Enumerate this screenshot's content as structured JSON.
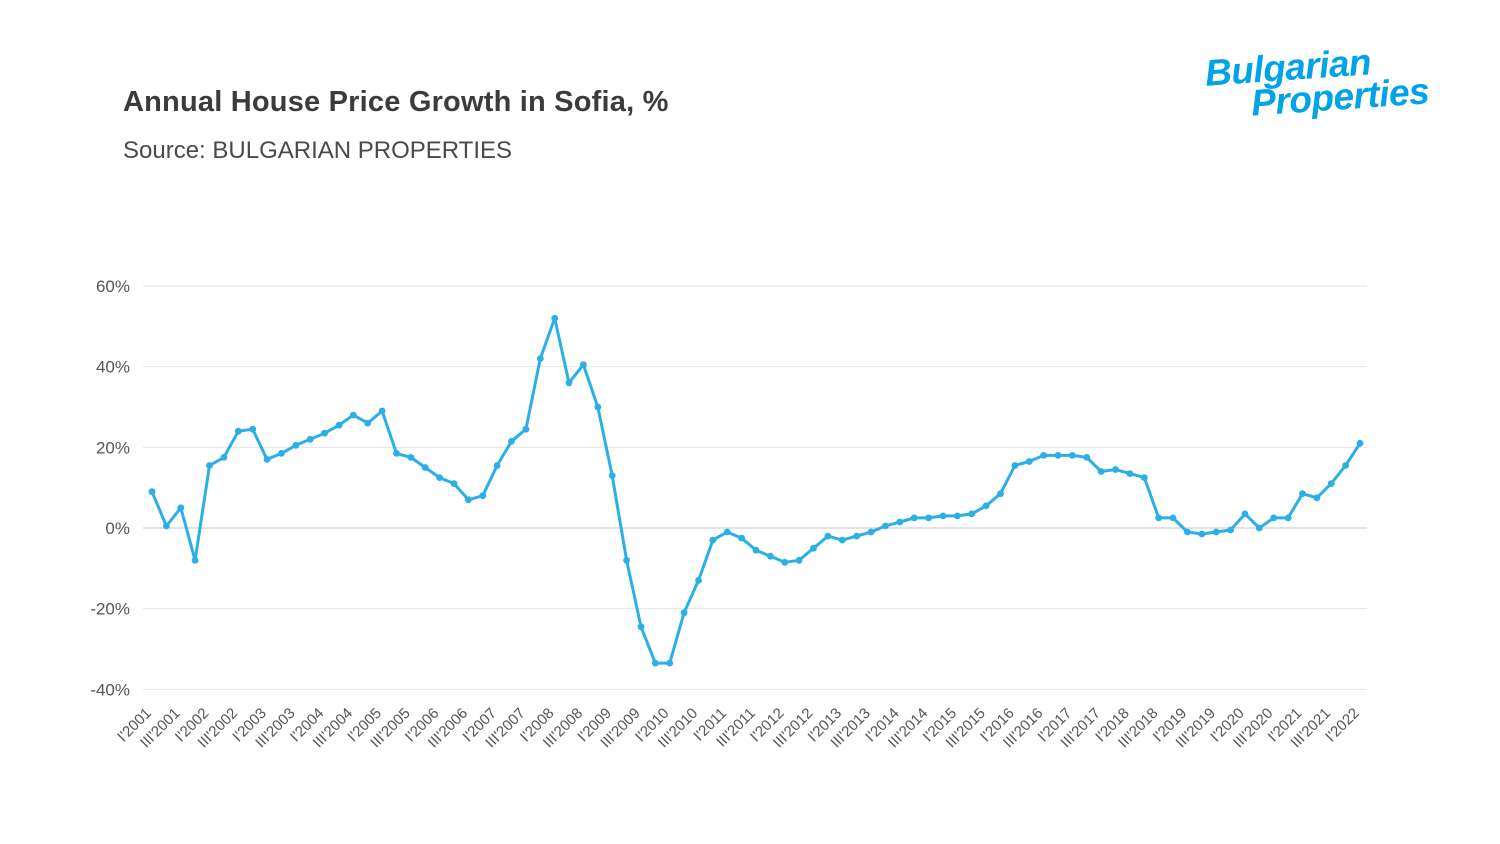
{
  "header": {
    "title": "Annual House Price Growth in Sofia, %",
    "source": "Source: BULGARIAN PROPERTIES"
  },
  "logo": {
    "line1": "Bulgarian",
    "line2": "Properties",
    "color": "#00a2e8"
  },
  "colors": {
    "line": "#2bafe6",
    "gridline": "#e4e4e4",
    "zero_gridline": "#c7c7c7",
    "axis_text": "#555555",
    "title_text": "#3b3b3b"
  },
  "chart_data": {
    "type": "line",
    "title": "Annual House Price Growth in Sofia, %",
    "subtitle": "Source: BULGARIAN PROPERTIES",
    "series_name": "Annual house price growth, %",
    "xlabel": "",
    "ylabel": "",
    "ylim": [
      -40,
      60
    ],
    "yticks": [
      60,
      40,
      20,
      0,
      -20,
      -40
    ],
    "ytick_suffix": "%",
    "grid": "horizontal",
    "legend": "none",
    "x_label_every": 2,
    "x_label_rotation": -45,
    "line_color": "#2bafe6",
    "marker": "circle",
    "x": [
      "I'2001",
      "II'2001",
      "III'2001",
      "IV'2001",
      "I'2002",
      "II'2002",
      "III'2002",
      "IV'2002",
      "I'2003",
      "II'2003",
      "III'2003",
      "IV'2003",
      "I'2004",
      "II'2004",
      "III'2004",
      "IV'2004",
      "I'2005",
      "II'2005",
      "III'2005",
      "IV'2005",
      "I'2006",
      "II'2006",
      "III'2006",
      "IV'2006",
      "I'2007",
      "II'2007",
      "III'2007",
      "IV'2007",
      "I'2008",
      "II'2008",
      "III'2008",
      "IV'2008",
      "I'2009",
      "II'2009",
      "III'2009",
      "IV'2009",
      "I'2010",
      "II'2010",
      "III'2010",
      "IV'2010",
      "I'2011",
      "II'2011",
      "III'2011",
      "IV'2011",
      "I'2012",
      "II'2012",
      "III'2012",
      "IV'2012",
      "I'2013",
      "II'2013",
      "III'2013",
      "IV'2013",
      "I'2014",
      "II'2014",
      "III'2014",
      "IV'2014",
      "I'2015",
      "II'2015",
      "III'2015",
      "IV'2015",
      "I'2016",
      "II'2016",
      "III'2016",
      "IV'2016",
      "I'2017",
      "II'2017",
      "III'2017",
      "IV'2017",
      "I'2018",
      "II'2018",
      "III'2018",
      "IV'2018",
      "I'2019",
      "II'2019",
      "III'2019",
      "IV'2019",
      "I'2020",
      "II'2020",
      "III'2020",
      "IV'2020",
      "I'2021",
      "II'2021",
      "III'2021",
      "IV'2021",
      "I'2022"
    ],
    "values": [
      9,
      0.5,
      5,
      -8,
      15.5,
      17.5,
      24,
      24.5,
      17,
      18.5,
      20.5,
      22,
      23.5,
      25.5,
      28,
      26,
      29,
      18.5,
      17.5,
      15,
      12.5,
      11,
      7,
      8,
      15.5,
      21.5,
      24.5,
      42,
      52,
      36,
      40.5,
      30,
      13,
      -8,
      -24.5,
      -33.5,
      -33.5,
      -21,
      -13,
      -3,
      -1,
      -2.5,
      -5.5,
      -7,
      -8.5,
      -8,
      -5,
      -2,
      -3,
      -2,
      -1,
      0.5,
      1.5,
      2.5,
      2.5,
      3,
      3,
      3.5,
      5.5,
      8.5,
      15.5,
      16.5,
      18,
      18,
      18,
      17.5,
      14,
      14.5,
      13.5,
      12.5,
      2.5,
      2.5,
      -1,
      -1.5,
      -1,
      -0.5,
      3.5,
      0,
      2.5,
      2.5,
      8.5,
      7.5,
      11,
      15.5,
      21
    ]
  }
}
